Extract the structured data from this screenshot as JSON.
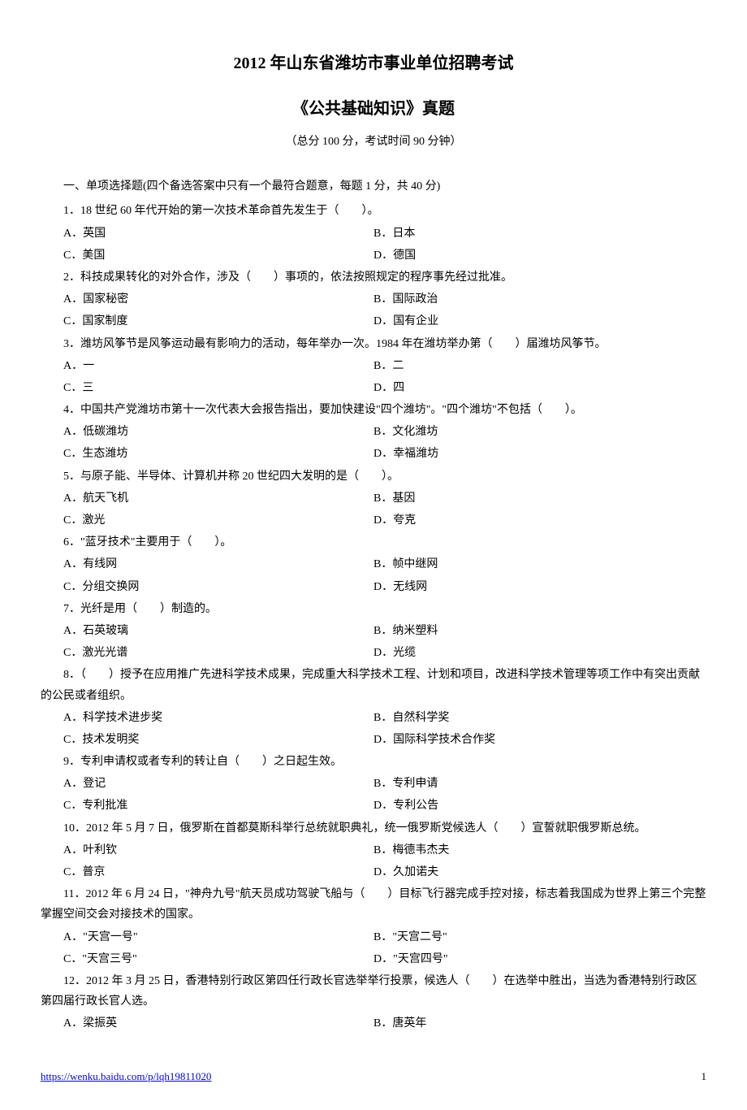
{
  "title_main": "2012 年山东省潍坊市事业单位招聘考试",
  "title_sub": "《公共基础知识》真题",
  "exam_info": "（总分 100 分，考试时间 90 分钟）",
  "section_header": "一、单项选择题(四个备选答案中只有一个最符合题意，每题 1 分，共 40 分)",
  "questions": [
    {
      "text": "1．18 世纪 60 年代开始的第一次技术革命首先发生于（　　）。",
      "opts": [
        "A．英国",
        "B．日本",
        "C．美国",
        "D．德国"
      ]
    },
    {
      "text": "2．科技成果转化的对外合作，涉及（　　）事项的，依法按照规定的程序事先经过批准。",
      "opts": [
        "A．国家秘密",
        "B．国际政治",
        "C．国家制度",
        "D．国有企业"
      ]
    },
    {
      "text": "3．潍坊风筝节是风筝运动最有影响力的活动，每年举办一次。1984 年在潍坊举办第（　　）届潍坊风筝节。",
      "opts": [
        "A．一",
        "B．二",
        "C．三",
        "D．四"
      ]
    },
    {
      "text": "4．中国共产党潍坊市第十一次代表大会报告指出，要加快建设\"四个潍坊\"。\"四个潍坊\"不包括（　　）。",
      "opts": [
        "A．低碳潍坊",
        "B．文化潍坊",
        "C．生态潍坊",
        "D．幸福潍坊"
      ]
    },
    {
      "text": "5．与原子能、半导体、计算机并称 20 世纪四大发明的是（　　）。",
      "opts": [
        "A．航天飞机",
        "B．基因",
        "C．激光",
        "D．夸克"
      ]
    },
    {
      "text": "6．\"蓝牙技术\"主要用于（　　）。",
      "opts": [
        "A．有线网",
        "B．帧中继网",
        "C．分组交换网",
        "D．无线网"
      ]
    },
    {
      "text": "7．光纤是用（　　）制造的。",
      "opts": [
        "A．石英玻璃",
        "B．纳米塑料",
        "C．激光光谱",
        "D．光缆"
      ]
    },
    {
      "text": "8．（　　）授予在应用推广先进科学技术成果，完成重大科学技术工程、计划和项目，改进科学技术管理等项工作中有突出贡献的公民或者组织。",
      "opts": [
        "A．科学技术进步奖",
        "B．自然科学奖",
        "C．技术发明奖",
        "D．国际科学技术合作奖"
      ]
    },
    {
      "text": "9．专利申请权或者专利的转让自（　　）之日起生效。",
      "opts": [
        "A．登记",
        "B．专利申请",
        "C．专利批准",
        "D．专利公告"
      ]
    },
    {
      "text": "10．2012 年 5 月 7 日，俄罗斯在首都莫斯科举行总统就职典礼，统一俄罗斯党候选人（　　）宣誓就职俄罗斯总统。",
      "opts": [
        "A．叶利钦",
        "B．梅德韦杰夫",
        "C．普京",
        "D．久加诺夫"
      ]
    },
    {
      "text": "11．2012 年 6 月 24 日，\"神舟九号\"航天员成功驾驶飞船与（　　）目标飞行器完成手控对接，标志着我国成为世界上第三个完整掌握空间交会对接技术的国家。",
      "opts": [
        "A．\"天宫一号\"",
        "B．\"天宫二号\"",
        "C．\"天宫三号\"",
        "D．\"天宫四号\""
      ]
    },
    {
      "text": "12．2012 年 3 月 25 日，香港特别行政区第四任行政长官选举举行投票，候选人（　　）在选举中胜出，当选为香港特别行政区第四届行政长官人选。",
      "opts": [
        "A．梁振英",
        "B．唐英年"
      ]
    }
  ],
  "footer_link": "https://wenku.baidu.com/p/lqh19811020",
  "page_number": "1"
}
